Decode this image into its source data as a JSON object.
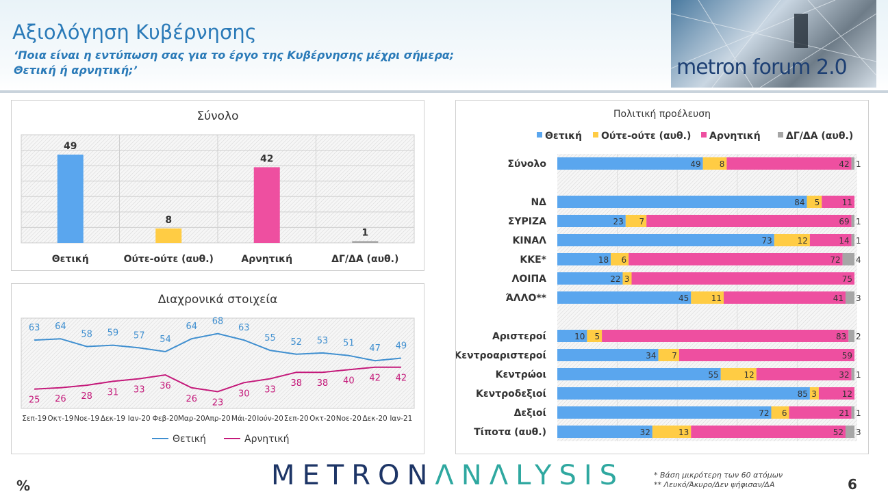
{
  "header": {
    "title": "Αξιολόγηση Κυβέρνησης",
    "subtitle_line1": "‘Ποια είναι η εντύπωση σας για το έργο της Κυβέρνησης μέχρι σήμερα;",
    "subtitle_line2": "Θετική ή αρνητική;’",
    "logo_text": "metron forum 2.0"
  },
  "colors": {
    "positive": "#5aa6ee",
    "neutral": "#ffcc44",
    "negative": "#ee4fa0",
    "dk": "#a6a6a6",
    "trend_positive": "#3f8fd0",
    "trend_negative": "#c4197a",
    "title_blue": "#2a7ab8"
  },
  "footer": {
    "brand_part1": "METRON",
    "brand_part2": "ΛNΛLYSIS",
    "percent_sign": "%",
    "note1": "*  Βάση μικρότερη των 60 ατόμων",
    "note2": "** Λευκό/Άκυρο/Δεν ψήφισαν/ΔΑ",
    "page_number": "6"
  },
  "chart_data": [
    {
      "type": "bar",
      "title": "Σύνολο",
      "categories": [
        "Θετική",
        "Ούτε-ούτε (αυθ.)",
        "Αρνητική",
        "ΔΓ/ΔΑ (αυθ.)"
      ],
      "values": [
        49,
        8,
        42,
        1
      ],
      "ylim": [
        0,
        60
      ]
    },
    {
      "type": "line",
      "title": "Διαχρονικά στοιχεία",
      "x": [
        "Σεπ-19",
        "Οκτ-19",
        "Νοε-19",
        "Δεκ-19",
        "Ιαν-20",
        "Φεβ-20",
        "Μαρ-20",
        "Απρ-20",
        "Μάι-20",
        "Ιούν-20",
        "Σεπ-20",
        "Οκτ-20",
        "Νοε-20",
        "Δεκ-20",
        "Ιαν-21"
      ],
      "series": [
        {
          "name": "Θετική",
          "values": [
            63,
            64,
            58,
            59,
            57,
            54,
            64,
            68,
            63,
            55,
            52,
            53,
            51,
            47,
            49
          ]
        },
        {
          "name": "Αρνητική",
          "values": [
            25,
            26,
            28,
            31,
            33,
            36,
            26,
            23,
            30,
            33,
            38,
            38,
            40,
            42,
            42
          ]
        }
      ],
      "legend": "bottom"
    },
    {
      "type": "bar",
      "orientation": "horizontal-stacked",
      "title": "Πολιτική προέλευση",
      "legend": "top",
      "series_names": [
        "Θετική",
        "Ούτε-ούτε (αυθ.)",
        "Αρνητική",
        "ΔΓ/ΔΑ (αυθ.)"
      ],
      "categories": [
        "Σύνολο",
        "",
        "ΝΔ",
        "ΣΥΡΙΖΑ",
        "ΚΙΝΑΛ",
        "ΚΚΕ*",
        "ΛΟΙΠΑ",
        "ΆΛΛΟ**",
        "",
        "Αριστεροί",
        "Κεντροαριστεροί",
        "Κεντρώοι",
        "Κεντροδεξιοί",
        "Δεξιοί",
        "Τίποτα (αυθ.)"
      ],
      "rows": [
        [
          49,
          8,
          42,
          1
        ],
        null,
        [
          84,
          5,
          11,
          0
        ],
        [
          23,
          7,
          69,
          1
        ],
        [
          73,
          12,
          14,
          1
        ],
        [
          18,
          6,
          72,
          4
        ],
        [
          22,
          3,
          75,
          0
        ],
        [
          45,
          11,
          41,
          3
        ],
        null,
        [
          10,
          5,
          83,
          2
        ],
        [
          34,
          7,
          59,
          0
        ],
        [
          55,
          12,
          32,
          1
        ],
        [
          85,
          3,
          12,
          0
        ],
        [
          72,
          6,
          21,
          1
        ],
        [
          32,
          13,
          52,
          3
        ]
      ],
      "xlim": [
        0,
        100
      ]
    }
  ]
}
